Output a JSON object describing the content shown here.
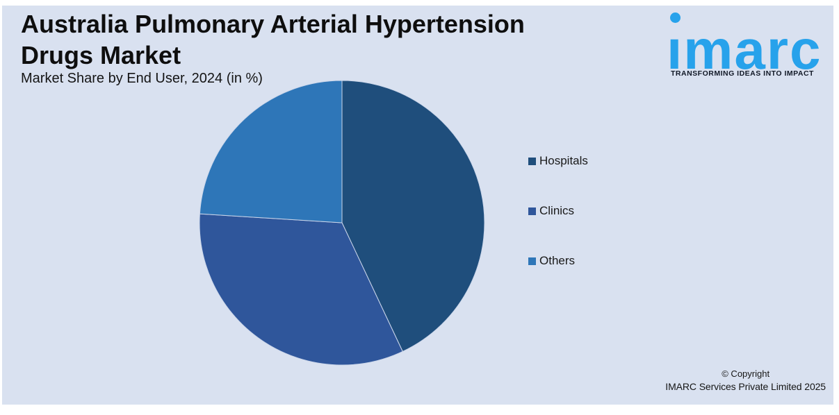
{
  "page": {
    "background": "#FFFFFF",
    "panel_background": "#D9E1F0"
  },
  "header": {
    "title_line1": "Australia Pulmonary Arterial Hypertension",
    "title_line2": "Drugs Market",
    "subtitle": "Market Share by End User, 2024 (in %)"
  },
  "logo": {
    "name": "imarc",
    "tagline": "TRANSFORMING IDEAS INTO IMPACT",
    "brand_color": "#27A2EB"
  },
  "footer": {
    "copyright_line1": "© Copyright",
    "copyright_line2": "IMARC Services Private Limited 2025"
  },
  "chart_data": {
    "type": "pie",
    "title": "Australia Pulmonary Arterial Hypertension Drugs Market",
    "subtitle": "Market Share by End User, 2024 (in %)",
    "categories": [
      "Hospitals",
      "Clinics",
      "Others"
    ],
    "values": [
      43,
      33,
      24
    ],
    "unit": "%",
    "colors": [
      "#1F4E7C",
      "#2F569B",
      "#2E76B8"
    ],
    "legend_position": "right",
    "start_angle_deg": 0,
    "direction": "clockwise",
    "data_labels": false
  }
}
